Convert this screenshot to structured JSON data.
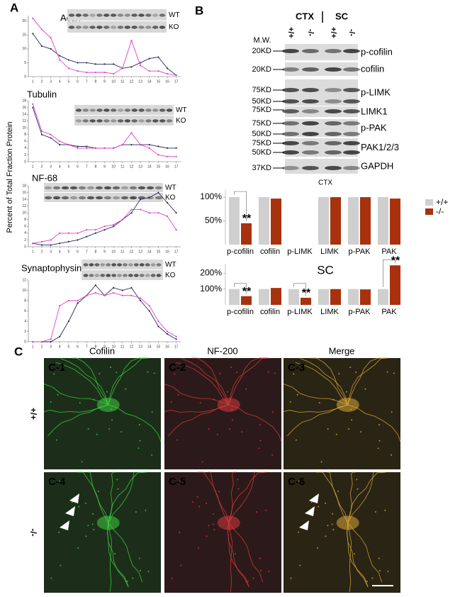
{
  "panel_a": {
    "label": "A",
    "y_axis_label": "Percent of Total Fraction Protein"
  },
  "panel_b": {
    "label": "B",
    "groups": [
      "CTX",
      "SC"
    ],
    "genotypes": [
      "+/+",
      "-/-",
      "+/+",
      "-/-"
    ],
    "mw_label": "M.W.",
    "rows": [
      {
        "mw": [
          "20KD"
        ],
        "name": "p-cofilin"
      },
      {
        "mw": [
          "20KD"
        ],
        "name": "cofilin"
      },
      {
        "mw": [
          "75KD",
          "50KD"
        ],
        "name": "p-LIMK"
      },
      {
        "mw": [
          "75KD"
        ],
        "name": "LIMK1"
      },
      {
        "mw": [
          "75KD",
          "50KD"
        ],
        "name": "p-PAK"
      },
      {
        "mw": [
          "75KD",
          "50KD"
        ],
        "name": "PAK1/2/3"
      },
      {
        "mw": [
          "37KD"
        ],
        "name": "GAPDH"
      }
    ]
  },
  "panel_c": {
    "label": "C",
    "channels": [
      "Cofilin",
      "NF-200",
      "Merge"
    ],
    "genotypes": [
      "+/+",
      "-/-"
    ],
    "panels": [
      "C-1",
      "C-2",
      "C-3",
      "C-4",
      "C-5",
      "C-6"
    ]
  },
  "chart_data": [
    {
      "type": "line",
      "title": "Actin",
      "x": [
        1,
        2,
        3,
        4,
        5,
        6,
        7,
        8,
        9,
        10,
        11,
        12,
        13,
        14,
        15,
        16,
        17
      ],
      "xticks": [
        1,
        2,
        3,
        4,
        5,
        6,
        7,
        8,
        9,
        10,
        11,
        12,
        13,
        14,
        15,
        16,
        17
      ],
      "xlim": [
        0.5,
        17.5
      ],
      "ylim": [
        0,
        22
      ],
      "yticks": [
        0,
        5,
        10,
        15,
        20
      ],
      "series": [
        {
          "name": "WT",
          "color": "#2a2a5a",
          "values": [
            15.5,
            11,
            10,
            7.5,
            6,
            5,
            5,
            4.5,
            4.5,
            4.5,
            3,
            3.5,
            5,
            6.5,
            7,
            3,
            0.5
          ]
        },
        {
          "name": "KO",
          "color": "#e040d0",
          "values": [
            21,
            17,
            14,
            6,
            3,
            2,
            1.5,
            1.5,
            1.5,
            1,
            3,
            13,
            4,
            2,
            2,
            1,
            0.5
          ]
        }
      ]
    },
    {
      "type": "line",
      "title": "Tubulin",
      "x": [
        1,
        2,
        3,
        4,
        5,
        6,
        7,
        8,
        9,
        10,
        11,
        12,
        13,
        14,
        15,
        16,
        17
      ],
      "xticks": [
        1,
        2,
        3,
        4,
        5,
        6,
        7,
        8,
        9,
        10,
        11,
        12,
        13,
        14,
        15,
        16,
        17
      ],
      "xlim": [
        0.5,
        17.5
      ],
      "ylim": [
        0,
        18
      ],
      "yticks": [
        0,
        2,
        4,
        6,
        8,
        10,
        12,
        14,
        16,
        18
      ],
      "series": [
        {
          "name": "WT",
          "color": "#2a2a5a",
          "values": [
            16,
            8,
            7,
            5,
            5,
            4.5,
            4.5,
            4,
            4,
            4,
            5,
            5,
            5,
            5,
            4.5,
            4,
            4
          ]
        },
        {
          "name": "KO",
          "color": "#e040d0",
          "values": [
            17,
            9,
            8,
            6,
            5,
            4,
            4,
            4,
            4,
            4,
            5,
            8.5,
            5,
            4,
            2,
            1.5,
            1.5
          ]
        }
      ]
    },
    {
      "type": "line",
      "title": "NF-68",
      "x": [
        1,
        2,
        3,
        4,
        5,
        6,
        7,
        8,
        9,
        10,
        11,
        12,
        13,
        14,
        15,
        16,
        17
      ],
      "xticks": [
        1,
        2,
        3,
        4,
        5,
        6,
        7,
        8,
        9,
        10,
        11,
        12,
        13,
        14,
        15,
        16,
        17
      ],
      "xlim": [
        0.5,
        17.5
      ],
      "ylim": [
        0,
        18
      ],
      "yticks": [
        0,
        2,
        4,
        6,
        8,
        10,
        12,
        14,
        16,
        18
      ],
      "series": [
        {
          "name": "WT",
          "color": "#2a2a5a",
          "values": [
            1,
            0.5,
            0.5,
            1,
            1.5,
            2,
            3,
            4,
            5,
            6,
            8,
            10,
            14,
            14.5,
            16,
            13,
            10
          ]
        },
        {
          "name": "KO",
          "color": "#e040d0",
          "values": [
            1,
            1.5,
            2,
            4,
            4,
            4,
            5,
            5,
            6,
            6.5,
            8,
            11,
            11,
            10,
            10,
            9,
            5
          ]
        }
      ]
    },
    {
      "type": "line",
      "title": "Synaptophysin",
      "x": [
        1,
        2,
        3,
        4,
        5,
        6,
        7,
        8,
        9,
        10,
        11,
        12,
        13,
        14,
        15,
        16,
        17
      ],
      "xticks": [
        1,
        2,
        3,
        4,
        5,
        6,
        7,
        8,
        9,
        10,
        11,
        12,
        13,
        14,
        15,
        16,
        17
      ],
      "xlim": [
        0.5,
        17.5
      ],
      "ylim": [
        0,
        12
      ],
      "yticks": [
        0,
        2,
        4,
        6,
        8,
        10,
        12
      ],
      "series": [
        {
          "name": "WT",
          "color": "#2a2a5a",
          "values": [
            0,
            0,
            0,
            1,
            4,
            7.5,
            9,
            11,
            9,
            10.5,
            10,
            10.5,
            8,
            6,
            3,
            1.5,
            0.5
          ]
        },
        {
          "name": "KO",
          "color": "#e040d0",
          "values": [
            0,
            0,
            0.5,
            7,
            8,
            8,
            9,
            9.5,
            9,
            9.5,
            9,
            9,
            8.5,
            7,
            4,
            2,
            1
          ]
        }
      ]
    },
    {
      "type": "bar",
      "title": "CTX",
      "categories": [
        "p-cofilin",
        "cofilin",
        "p-LIMK",
        "LIMK",
        "p-PAK",
        "PAK"
      ],
      "ylim": [
        0,
        115
      ],
      "yticks": [
        {
          "value": 50,
          "label": "50%"
        },
        {
          "value": 100,
          "label": "100%"
        }
      ],
      "legend": "right",
      "series": [
        {
          "name": "+/+",
          "color": "#cfcfcf",
          "values": [
            100,
            100,
            null,
            100,
            100,
            100
          ]
        },
        {
          "name": "-/-",
          "color": "#a8320e",
          "values": [
            45,
            97,
            null,
            100,
            100,
            97
          ]
        }
      ],
      "annotations": [
        {
          "text": "**",
          "category": "p-cofilin"
        }
      ]
    },
    {
      "type": "bar",
      "title": "SC",
      "categories": [
        "p-cofilin",
        "cofilin",
        "p-LIMK",
        "LIMK",
        "p-PAK",
        "PAK"
      ],
      "ylim": [
        0,
        260
      ],
      "yticks": [
        {
          "value": 100,
          "label": "100%"
        },
        {
          "value": 200,
          "label": "200%"
        }
      ],
      "series": [
        {
          "name": "+/+",
          "color": "#cfcfcf",
          "values": [
            100,
            100,
            100,
            100,
            100,
            100
          ]
        },
        {
          "name": "-/-",
          "color": "#a8320e",
          "values": [
            55,
            107,
            45,
            100,
            98,
            250
          ]
        }
      ],
      "annotations": [
        {
          "text": "**",
          "category": "p-cofilin"
        },
        {
          "text": "**",
          "category": "p-LIMK"
        },
        {
          "text": "**",
          "category": "PAK"
        }
      ]
    }
  ]
}
